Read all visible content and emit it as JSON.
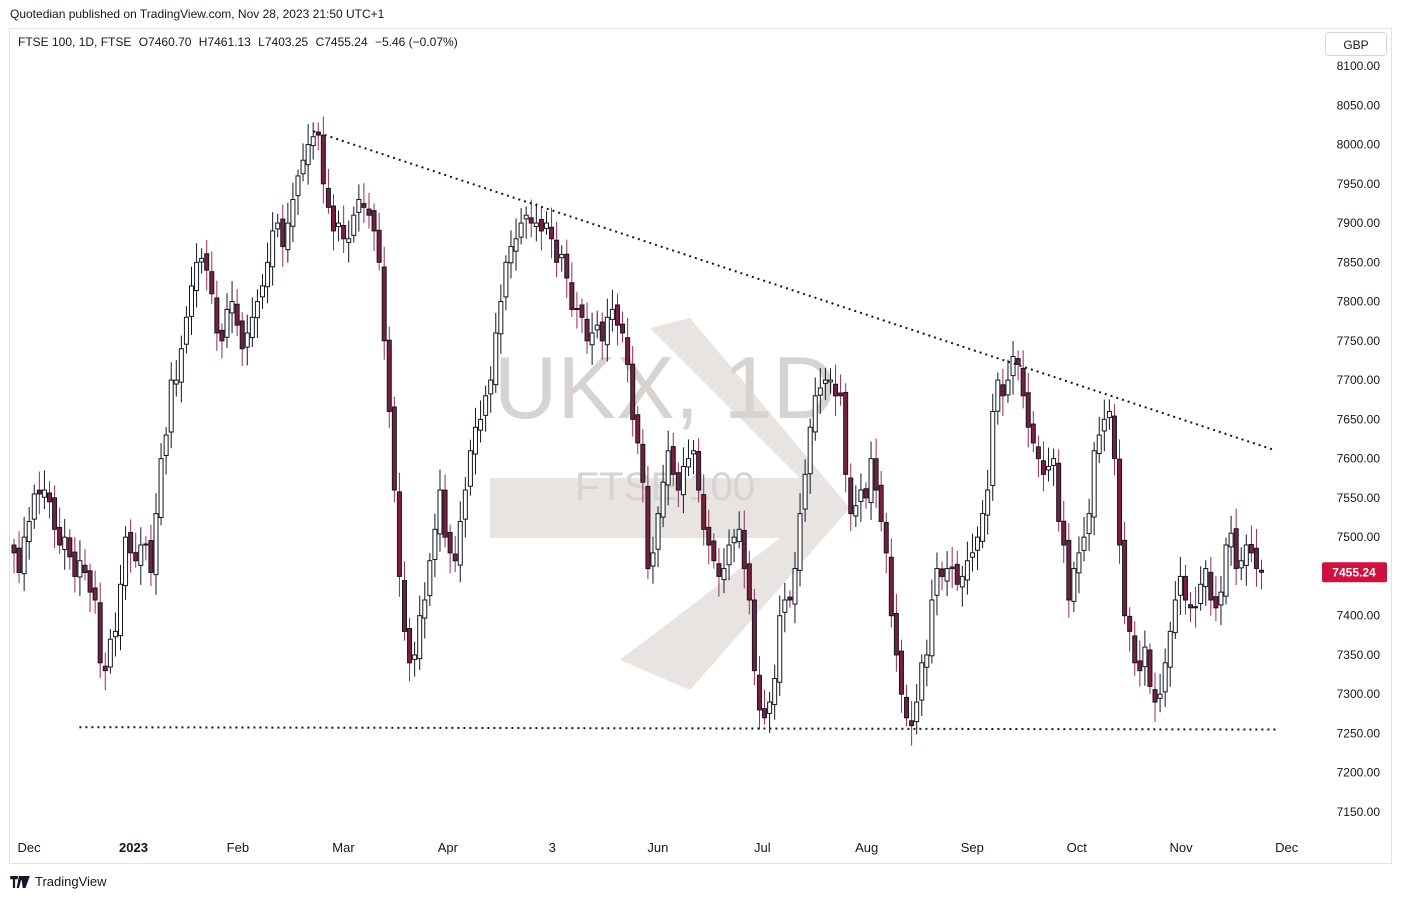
{
  "caption": "Quotedian published on TradingView.com, Nov 28, 2023 21:50 UTC+1",
  "legend": {
    "symbol": "FTSE 100, 1D, FTSE",
    "open": "O7460.70",
    "high": "H7461.13",
    "low": "L7403.25",
    "close": "C7455.24",
    "change": "−5.46 (−0.07%)"
  },
  "currency": "GBP",
  "watermark": {
    "title": "UKX, 1D",
    "subtitle": "FTSE 100"
  },
  "branding": "TradingView",
  "colors": {
    "up": "#ffffff",
    "down": "#7a1f3d",
    "outline": "#131722",
    "wick": "#9b2a55",
    "last_price": "#d1113d"
  },
  "chart_data": {
    "type": "candlestick",
    "ylim": [
      7112,
      8130
    ],
    "y_ticks": [
      "8100.00",
      "8050.00",
      "8000.00",
      "7950.00",
      "7900.00",
      "7850.00",
      "7800.00",
      "7750.00",
      "7700.00",
      "7650.00",
      "7600.00",
      "7550.00",
      "7500.00",
      "7450.00",
      "7400.00",
      "7350.00",
      "7300.00",
      "7250.00",
      "7200.00",
      "7150.00"
    ],
    "x_ticks": [
      {
        "label": "Dec",
        "t": 2022.917
      },
      {
        "label": "2023",
        "t": 2023.0
      },
      {
        "label": "Feb",
        "t": 2023.083
      },
      {
        "label": "Mar",
        "t": 2023.167
      },
      {
        "label": "Apr",
        "t": 2023.25
      },
      {
        "label": "3",
        "t": 2023.333
      },
      {
        "label": "Jun",
        "t": 2023.417
      },
      {
        "label": "Jul",
        "t": 2023.5
      },
      {
        "label": "Aug",
        "t": 2023.583
      },
      {
        "label": "Sep",
        "t": 2023.667
      },
      {
        "label": "Oct",
        "t": 2023.75
      },
      {
        "label": "Nov",
        "t": 2023.833
      },
      {
        "label": "Dec",
        "t": 2023.917
      }
    ],
    "last_price": "7455.24",
    "trendlines": [
      {
        "name": "resistance",
        "from": [
          2023.143,
          8017
        ],
        "to": [
          2023.907,
          7611
        ]
      },
      {
        "name": "support",
        "from": [
          2022.957,
          7258
        ],
        "to": [
          2023.908,
          7255
        ]
      }
    ],
    "closes": [
      7480,
      7455,
      7500,
      7520,
      7555,
      7555,
      7560,
      7545,
      7510,
      7490,
      7500,
      7475,
      7450,
      7470,
      7455,
      7430,
      7420,
      7340,
      7330,
      7370,
      7380,
      7440,
      7500,
      7480,
      7470,
      7490,
      7490,
      7455,
      7530,
      7600,
      7630,
      7700,
      7700,
      7740,
      7780,
      7820,
      7850,
      7855,
      7840,
      7810,
      7760,
      7750,
      7790,
      7800,
      7770,
      7740,
      7760,
      7780,
      7800,
      7820,
      7850,
      7890,
      7900,
      7870,
      7900,
      7930,
      7960,
      7980,
      8000,
      8010,
      8012,
      7950,
      7920,
      7890,
      7900,
      7880,
      7880,
      7910,
      7930,
      7920,
      7910,
      7890,
      7850,
      7750,
      7660,
      7560,
      7450,
      7380,
      7340,
      7350,
      7400,
      7420,
      7470,
      7510,
      7560,
      7500,
      7480,
      7470,
      7520,
      7560,
      7610,
      7640,
      7650,
      7680,
      7700,
      7760,
      7800,
      7850,
      7870,
      7880,
      7900,
      7910,
      7900,
      7900,
      7890,
      7900,
      7880,
      7850,
      7860,
      7830,
      7790,
      7790,
      7780,
      7750,
      7760,
      7770,
      7750,
      7780,
      7790,
      7770,
      7760,
      7720,
      7650,
      7620,
      7570,
      7460,
      7480,
      7530,
      7570,
      7610,
      7580,
      7560,
      7590,
      7600,
      7610,
      7560,
      7510,
      7490,
      7470,
      7450,
      7460,
      7490,
      7500,
      7510,
      7460,
      7420,
      7330,
      7280,
      7270,
      7290,
      7320,
      7400,
      7420,
      7420,
      7460,
      7530,
      7580,
      7640,
      7680,
      7690,
      7700,
      7700,
      7680,
      7680,
      7580,
      7530,
      7540,
      7560,
      7550,
      7600,
      7560,
      7520,
      7480,
      7400,
      7350,
      7300,
      7270,
      7260,
      7290,
      7340,
      7350,
      7420,
      7460,
      7450,
      7460,
      7460,
      7440,
      7450,
      7470,
      7480,
      7500,
      7530,
      7560,
      7660,
      7700,
      7680,
      7700,
      7730,
      7720,
      7680,
      7640,
      7620,
      7600,
      7580,
      7590,
      7600,
      7520,
      7490,
      7420,
      7460,
      7480,
      7500,
      7530,
      7610,
      7630,
      7650,
      7660,
      7600,
      7490,
      7400,
      7380,
      7340,
      7330,
      7360,
      7310,
      7290,
      7300,
      7340,
      7380,
      7420,
      7450,
      7420,
      7410,
      7410,
      7440,
      7460,
      7420,
      7410,
      7430,
      7490,
      7505,
      7460,
      7470,
      7490,
      7480,
      7460,
      7455.24
    ],
    "start": 2022.905,
    "step": 0.0040323
  }
}
